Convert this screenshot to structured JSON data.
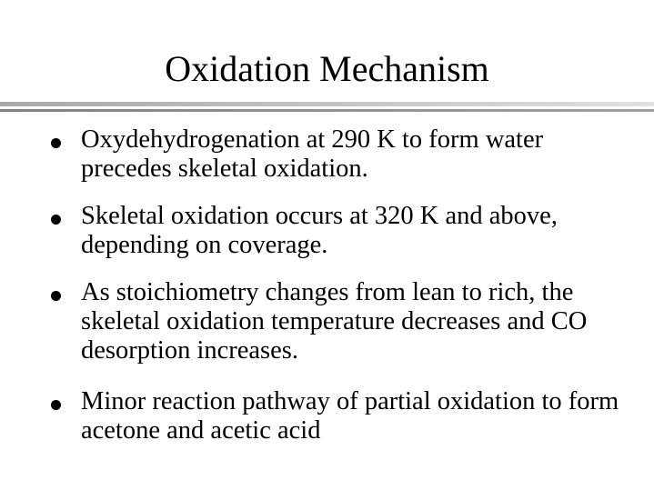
{
  "slide": {
    "title": "Oxidation Mechanism",
    "bullets": [
      "Oxydehydrogenation at 290 K to form water precedes skeletal oxidation.",
      "Skeletal oxidation occurs at 320 K and above, depending on coverage.",
      "As stoichiometry changes from lean to rich, the skeletal oxidation temperature decreases and CO desorption increases.",
      "Minor reaction pathway of partial oxidation to form acetone and acetic acid"
    ]
  }
}
